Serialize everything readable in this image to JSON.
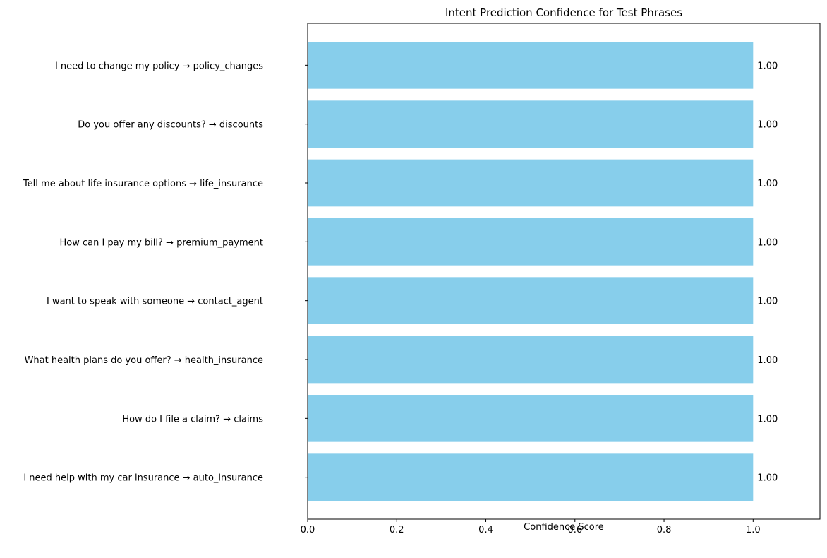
{
  "chart_data": {
    "type": "bar",
    "orientation": "horizontal",
    "title": "Intent Prediction Confidence for Test Phrases",
    "xlabel": "Confidence Score",
    "ylabel": "",
    "xlim": [
      0,
      1.15
    ],
    "xticks": [
      0.0,
      0.2,
      0.4,
      0.6,
      0.8,
      1.0
    ],
    "xtick_labels": [
      "0.0",
      "0.2",
      "0.4",
      "0.6",
      "0.8",
      "1.0"
    ],
    "grid": false,
    "bar_color": "#87CEEB",
    "categories": [
      "I need help with my car insurance → auto_insurance",
      "How do I file a claim? → claims",
      "What health plans do you offer? → health_insurance",
      "I want to speak with someone → contact_agent",
      "How can I pay my bill? → premium_payment",
      "Tell me about life insurance options → life_insurance",
      "Do you offer any discounts? → discounts",
      "I need to change my policy → policy_changes"
    ],
    "values": [
      1.0,
      1.0,
      1.0,
      1.0,
      1.0,
      1.0,
      1.0,
      1.0
    ],
    "value_labels": [
      "1.00",
      "1.00",
      "1.00",
      "1.00",
      "1.00",
      "1.00",
      "1.00",
      "1.00"
    ]
  }
}
